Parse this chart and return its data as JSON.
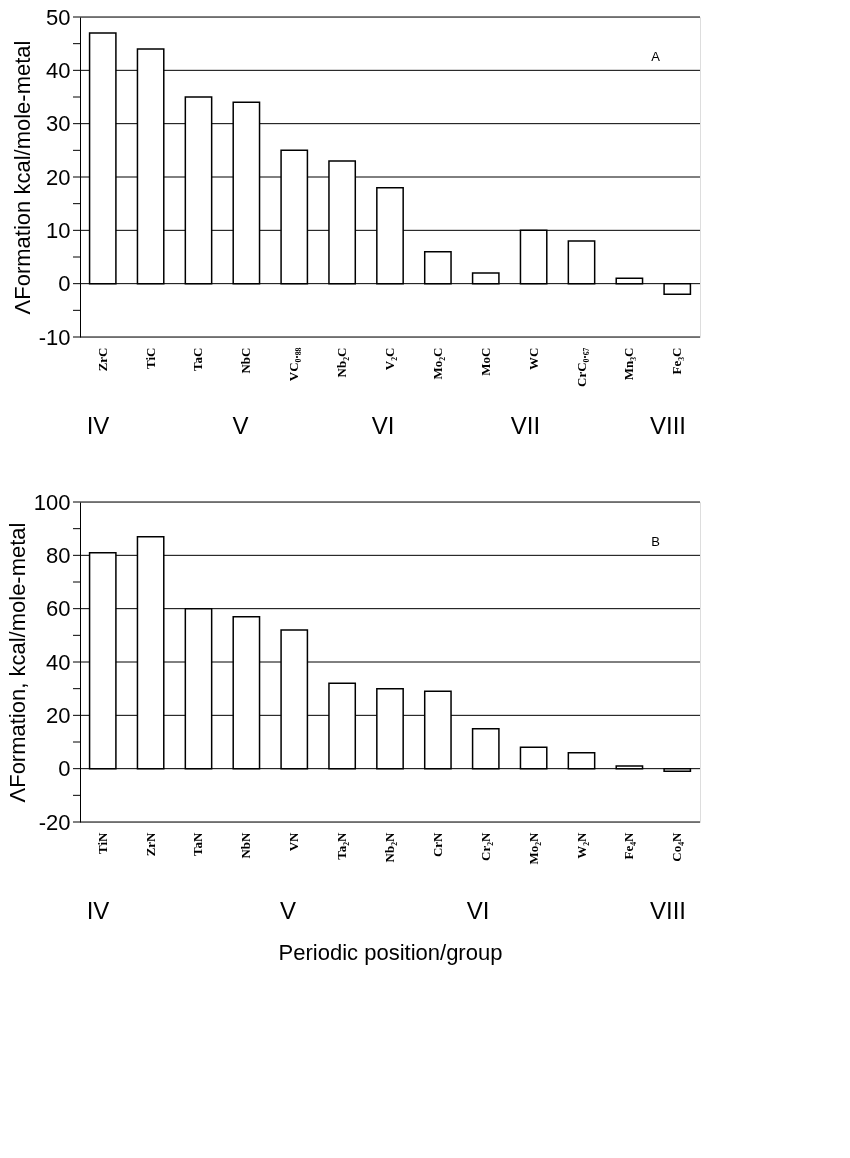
{
  "chart_data": [
    {
      "type": "bar",
      "ylabel": "ΛFormation kcal/mole-metal",
      "categories": [
        "ZrC",
        "TiC",
        "TaC",
        "NbC",
        "VC₀.₈₈",
        "Nb₂C",
        "V₂C",
        "Mo₂C",
        "MoC",
        "WC",
        "CrC₀.₆₇",
        "Mn₃C",
        "Fe₃C"
      ],
      "series": [
        {
          "color": "#ffffff",
          "values": [
            47,
            44,
            35,
            34,
            25,
            23,
            18,
            6,
            2,
            10,
            8,
            1,
            -2
          ]
        }
      ],
      "ylim": [
        -10,
        50
      ],
      "yticks": [
        -10,
        {
          "value": -5,
          "label": null
        },
        0,
        {
          "value": 5,
          "label": null
        },
        10,
        {
          "value": 15,
          "label": null
        },
        20,
        {
          "value": 25,
          "label": null
        },
        30,
        {
          "value": 35,
          "label": null
        },
        40,
        {
          "value": 45,
          "label": null
        },
        50
      ],
      "grid": "y",
      "annotations": [
        "A",
        "IV",
        "V",
        "VI",
        "VII",
        "VIII"
      ]
    },
    {
      "type": "bar",
      "ylabel": "ΛFormation, kcal/mole-metal",
      "xlabel": "Periodic position/group",
      "categories": [
        "TiN",
        "ZrN",
        "TaN",
        "NbN",
        "VN",
        "Ta₂N",
        "Nb₂N",
        "CrN",
        "Cr₂N",
        "Mo₂N",
        "W₂N",
        "Fe₄N",
        "Co₄N"
      ],
      "series": [
        {
          "color": "#ffffff",
          "values": [
            81,
            87,
            60,
            57,
            52,
            32,
            30,
            29,
            15,
            8,
            6,
            1,
            -1
          ]
        }
      ],
      "ylim": [
        -20,
        100
      ],
      "yticks": [
        -20,
        {
          "value": -10,
          "label": null
        },
        0,
        {
          "value": 10,
          "label": null
        },
        20,
        {
          "value": 30,
          "label": null
        },
        40,
        {
          "value": 50,
          "label": null
        },
        60,
        {
          "value": 70,
          "label": null
        },
        80,
        {
          "value": 90,
          "label": null
        },
        100
      ],
      "grid": "y",
      "annotations": [
        "B",
        "IV",
        "V",
        "VI",
        "VIII"
      ]
    }
  ]
}
